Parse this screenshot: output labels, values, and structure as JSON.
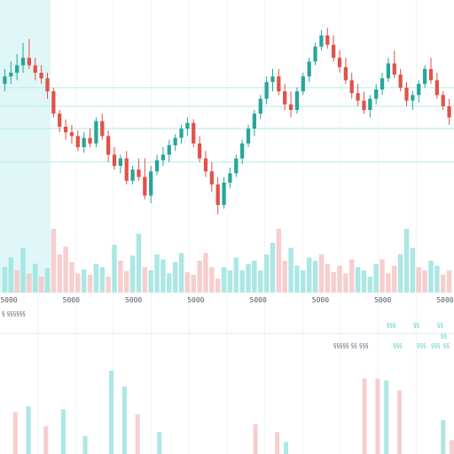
{
  "colors": {
    "up": "#26a69a",
    "down": "#e0524a",
    "up_volume": "#9de3df",
    "down_volume": "#f6c5c5",
    "guide_line": "#bdeeee",
    "highlight": "#dff7f6",
    "grid": "#f1f3f5"
  },
  "chart_data": [
    {
      "type": "candlestick",
      "title": "",
      "xlabel": "",
      "ylabel": "",
      "x_tick_labels": [
        "5000",
        "5000",
        "5000",
        "5000",
        "5000",
        "5000",
        "5000",
        "5000"
      ],
      "ylim": [
        0,
        100
      ],
      "horizontal_levels": [
        72,
        62,
        50,
        32
      ],
      "highlighted_range": [
        0,
        7
      ],
      "candles": [
        {
          "o": 74,
          "h": 82,
          "l": 70,
          "c": 78
        },
        {
          "o": 78,
          "h": 86,
          "l": 74,
          "c": 80
        },
        {
          "o": 80,
          "h": 90,
          "l": 76,
          "c": 84
        },
        {
          "o": 84,
          "h": 96,
          "l": 80,
          "c": 88
        },
        {
          "o": 88,
          "h": 98,
          "l": 82,
          "c": 84
        },
        {
          "o": 84,
          "h": 88,
          "l": 76,
          "c": 80
        },
        {
          "o": 80,
          "h": 84,
          "l": 74,
          "c": 77
        },
        {
          "o": 77,
          "h": 80,
          "l": 66,
          "c": 70
        },
        {
          "o": 70,
          "h": 72,
          "l": 56,
          "c": 58
        },
        {
          "o": 58,
          "h": 60,
          "l": 48,
          "c": 51
        },
        {
          "o": 51,
          "h": 55,
          "l": 44,
          "c": 48
        },
        {
          "o": 48,
          "h": 52,
          "l": 42,
          "c": 46
        },
        {
          "o": 46,
          "h": 49,
          "l": 38,
          "c": 40
        },
        {
          "o": 40,
          "h": 48,
          "l": 37,
          "c": 45
        },
        {
          "o": 45,
          "h": 50,
          "l": 40,
          "c": 42
        },
        {
          "o": 42,
          "h": 56,
          "l": 40,
          "c": 54
        },
        {
          "o": 54,
          "h": 58,
          "l": 44,
          "c": 46
        },
        {
          "o": 46,
          "h": 49,
          "l": 32,
          "c": 36
        },
        {
          "o": 36,
          "h": 40,
          "l": 28,
          "c": 30
        },
        {
          "o": 30,
          "h": 36,
          "l": 26,
          "c": 34
        },
        {
          "o": 34,
          "h": 38,
          "l": 20,
          "c": 22
        },
        {
          "o": 22,
          "h": 30,
          "l": 20,
          "c": 28
        },
        {
          "o": 28,
          "h": 34,
          "l": 22,
          "c": 24
        },
        {
          "o": 24,
          "h": 34,
          "l": 12,
          "c": 14
        },
        {
          "o": 14,
          "h": 30,
          "l": 10,
          "c": 27
        },
        {
          "o": 27,
          "h": 36,
          "l": 25,
          "c": 33
        },
        {
          "o": 33,
          "h": 40,
          "l": 30,
          "c": 36
        },
        {
          "o": 36,
          "h": 44,
          "l": 32,
          "c": 41
        },
        {
          "o": 41,
          "h": 47,
          "l": 38,
          "c": 45
        },
        {
          "o": 45,
          "h": 52,
          "l": 42,
          "c": 50
        },
        {
          "o": 50,
          "h": 56,
          "l": 46,
          "c": 53
        },
        {
          "o": 53,
          "h": 55,
          "l": 40,
          "c": 42
        },
        {
          "o": 42,
          "h": 46,
          "l": 32,
          "c": 34
        },
        {
          "o": 34,
          "h": 38,
          "l": 24,
          "c": 27
        },
        {
          "o": 27,
          "h": 32,
          "l": 16,
          "c": 20
        },
        {
          "o": 20,
          "h": 24,
          "l": 4,
          "c": 9
        },
        {
          "o": 9,
          "h": 24,
          "l": 7,
          "c": 21
        },
        {
          "o": 21,
          "h": 29,
          "l": 18,
          "c": 26
        },
        {
          "o": 26,
          "h": 36,
          "l": 24,
          "c": 34
        },
        {
          "o": 34,
          "h": 44,
          "l": 31,
          "c": 42
        },
        {
          "o": 42,
          "h": 52,
          "l": 40,
          "c": 50
        },
        {
          "o": 50,
          "h": 60,
          "l": 46,
          "c": 58
        },
        {
          "o": 58,
          "h": 68,
          "l": 55,
          "c": 66
        },
        {
          "o": 66,
          "h": 78,
          "l": 63,
          "c": 75
        },
        {
          "o": 75,
          "h": 82,
          "l": 70,
          "c": 78
        },
        {
          "o": 78,
          "h": 82,
          "l": 68,
          "c": 70
        },
        {
          "o": 70,
          "h": 74,
          "l": 60,
          "c": 63
        },
        {
          "o": 63,
          "h": 70,
          "l": 56,
          "c": 60
        },
        {
          "o": 60,
          "h": 72,
          "l": 58,
          "c": 70
        },
        {
          "o": 70,
          "h": 80,
          "l": 68,
          "c": 78
        },
        {
          "o": 78,
          "h": 88,
          "l": 75,
          "c": 86
        },
        {
          "o": 86,
          "h": 96,
          "l": 84,
          "c": 94
        },
        {
          "o": 94,
          "h": 103,
          "l": 92,
          "c": 100
        },
        {
          "o": 100,
          "h": 104,
          "l": 93,
          "c": 95
        },
        {
          "o": 95,
          "h": 100,
          "l": 86,
          "c": 88
        },
        {
          "o": 88,
          "h": 92,
          "l": 80,
          "c": 83
        },
        {
          "o": 83,
          "h": 88,
          "l": 74,
          "c": 76
        },
        {
          "o": 76,
          "h": 80,
          "l": 66,
          "c": 69
        },
        {
          "o": 69,
          "h": 74,
          "l": 62,
          "c": 65
        },
        {
          "o": 65,
          "h": 70,
          "l": 58,
          "c": 60
        },
        {
          "o": 60,
          "h": 68,
          "l": 56,
          "c": 66
        },
        {
          "o": 66,
          "h": 74,
          "l": 63,
          "c": 71
        },
        {
          "o": 71,
          "h": 80,
          "l": 68,
          "c": 77
        },
        {
          "o": 77,
          "h": 88,
          "l": 75,
          "c": 85
        },
        {
          "o": 85,
          "h": 92,
          "l": 77,
          "c": 79
        },
        {
          "o": 79,
          "h": 82,
          "l": 70,
          "c": 72
        },
        {
          "o": 72,
          "h": 75,
          "l": 62,
          "c": 65
        },
        {
          "o": 65,
          "h": 70,
          "l": 60,
          "c": 68
        },
        {
          "o": 68,
          "h": 76,
          "l": 64,
          "c": 74
        },
        {
          "o": 74,
          "h": 84,
          "l": 72,
          "c": 82
        },
        {
          "o": 82,
          "h": 88,
          "l": 74,
          "c": 76
        },
        {
          "o": 76,
          "h": 80,
          "l": 66,
          "c": 68
        },
        {
          "o": 68,
          "h": 70,
          "l": 60,
          "c": 62
        },
        {
          "o": 62,
          "h": 66,
          "l": 52,
          "c": 56
        }
      ]
    },
    {
      "type": "bar",
      "title": "",
      "ylim": [
        0,
        100
      ],
      "values": [
        40,
        55,
        35,
        70,
        30,
        45,
        25,
        38,
        100,
        60,
        72,
        48,
        30,
        36,
        28,
        45,
        40,
        25,
        75,
        50,
        34,
        58,
        92,
        40,
        35,
        60,
        52,
        30,
        48,
        62,
        32,
        28,
        50,
        62,
        40,
        22,
        40,
        35,
        55,
        35,
        45,
        50,
        35,
        60,
        78,
        100,
        50,
        70,
        42,
        35,
        55,
        50,
        60,
        45,
        32,
        42,
        30,
        52,
        40,
        35,
        25,
        45,
        52,
        30,
        42,
        60,
        100,
        70,
        40,
        35,
        50,
        42,
        28,
        35
      ],
      "directions": [
        "u",
        "u",
        "d",
        "u",
        "d",
        "u",
        "d",
        "u",
        "d",
        "d",
        "d",
        "d",
        "d",
        "u",
        "d",
        "u",
        "u",
        "d",
        "u",
        "d",
        "d",
        "u",
        "u",
        "d",
        "u",
        "u",
        "u",
        "u",
        "u",
        "u",
        "d",
        "d",
        "d",
        "d",
        "d",
        "d",
        "u",
        "u",
        "u",
        "u",
        "u",
        "u",
        "u",
        "u",
        "u",
        "d",
        "d",
        "u",
        "u",
        "u",
        "u",
        "u",
        "d",
        "d",
        "d",
        "d",
        "d",
        "d",
        "u",
        "u",
        "u",
        "u",
        "d",
        "d",
        "d",
        "u",
        "u",
        "u",
        "d",
        "d",
        "u",
        "u",
        "d",
        "d"
      ]
    },
    {
      "type": "bar",
      "title": "",
      "ylim": [
        0,
        100
      ],
      "x": [
        3,
        6,
        10,
        14,
        19,
        25,
        28,
        31,
        36,
        58,
        63,
        65,
        83,
        86,
        88,
        91,
        101,
        103
      ],
      "values": [
        42,
        48,
        28,
        45,
        18,
        84,
        68,
        40,
        22,
        30,
        22,
        12,
        76,
        76,
        74,
        64,
        34,
        14
      ],
      "directions": [
        "d",
        "u",
        "d",
        "u",
        "u",
        "u",
        "u",
        "d",
        "u",
        "d",
        "d",
        "u",
        "d",
        "d",
        "u",
        "d",
        "u",
        "d"
      ]
    }
  ],
  "controls": {
    "left_label": "§ §§§§§§",
    "range_label": "§§§§§ §§ §§§",
    "pills_top": [
      "§§§",
      "§§",
      "§§"
    ],
    "pills_bottom": [
      "§§§",
      "§§§",
      "§§§",
      "§§"
    ],
    "extra_pill": "§§"
  }
}
